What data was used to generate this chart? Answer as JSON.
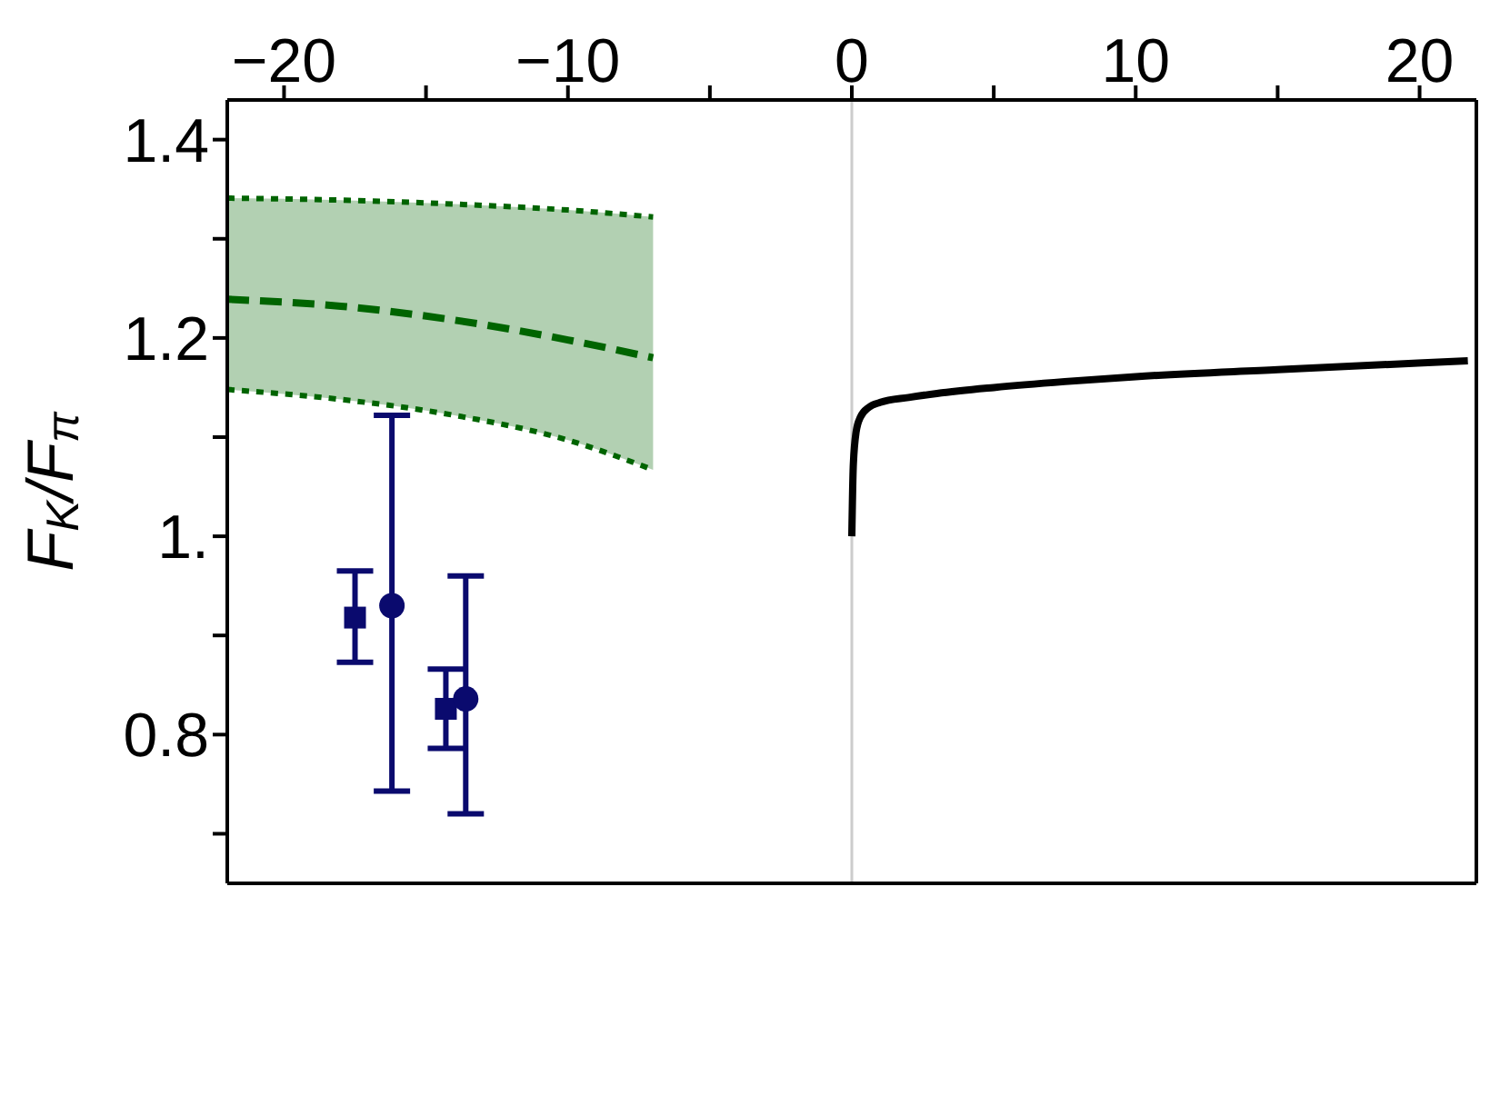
{
  "chart_data": {
    "type": "line",
    "ylabel": "F$_{K}$/F$_{π}$",
    "xlim": [
      -22,
      22
    ],
    "ylim": [
      0.65,
      1.44
    ],
    "xticks": [
      {
        "value": -20,
        "label": "−20"
      },
      {
        "value": -15,
        "label": null
      },
      {
        "value": -10,
        "label": "−10"
      },
      {
        "value": -5,
        "label": null
      },
      0,
      {
        "value": 5,
        "label": null
      },
      10,
      {
        "value": 15,
        "label": null
      },
      20
    ],
    "yticks": [
      {
        "value": 0.7,
        "label": null
      },
      0.8,
      {
        "value": 0.9,
        "label": null
      },
      {
        "value": 1,
        "label": "1."
      },
      {
        "value": 1.1,
        "label": null
      },
      1.2,
      {
        "value": 1.3,
        "label": null
      },
      1.4
    ],
    "ref_lines": [
      {
        "axis": "x",
        "value": 0,
        "color": "#cccccc"
      }
    ],
    "series": [
      {
        "color": "#006400",
        "line_style": "dotted",
        "x": [
          -22,
          -18,
          -14,
          -10,
          -7
        ],
        "values": [
          1.341,
          1.339,
          1.335,
          1.329,
          1.322
        ]
      },
      {
        "color": "#006400",
        "line_style": "dotted",
        "x": [
          -22,
          -18,
          -14,
          -10,
          -7
        ],
        "values": [
          1.148,
          1.138,
          1.122,
          1.097,
          1.067
        ]
      },
      {
        "color": "#006400",
        "line_style": "dashed",
        "x": [
          -22,
          -18,
          -14,
          -10,
          -7
        ],
        "values": [
          1.239,
          1.232,
          1.218,
          1.198,
          1.18
        ],
        "lower": [
          1.148,
          1.138,
          1.122,
          1.097,
          1.067
        ],
        "upper": [
          1.341,
          1.339,
          1.335,
          1.329,
          1.322
        ]
      },
      {
        "color": "#000000",
        "line_style": "solid",
        "marker": "none",
        "x": [
          0,
          0.05,
          0.15,
          0.3,
          0.6,
          1,
          2,
          3,
          5,
          7.5,
          10,
          15,
          21.7
        ],
        "values": [
          1.0,
          1.07,
          1.105,
          1.12,
          1.13,
          1.135,
          1.14,
          1.144,
          1.15,
          1.156,
          1.161,
          1.168,
          1.177
        ]
      },
      {
        "type": "scatter",
        "color": "#0a0a6e",
        "marker": "square",
        "x": [
          -17.5,
          -14.3
        ],
        "values": [
          0.918,
          0.826
        ],
        "errors": [
          [
            0.873,
            0.965
          ],
          [
            0.786,
            0.866
          ]
        ]
      },
      {
        "type": "scatter",
        "color": "#0a0a6e",
        "marker": "circle",
        "x": [
          -16.2,
          -13.6
        ],
        "values": [
          0.93,
          0.836
        ],
        "errors": [
          [
            0.743,
            1.122
          ],
          [
            0.72,
            0.96
          ]
        ]
      }
    ]
  }
}
